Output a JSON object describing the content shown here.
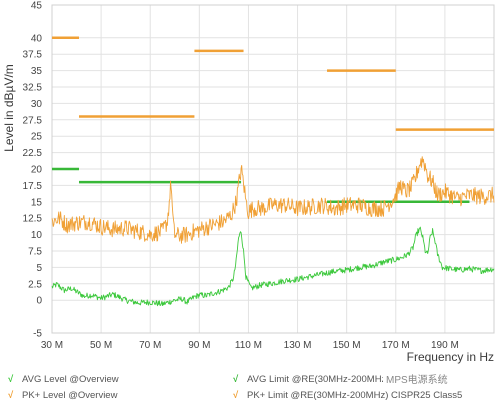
{
  "chart_data": {
    "type": "line",
    "xlabel": "Frequency in Hz",
    "ylabel": "Level in dBµV/m",
    "xlim": [
      30,
      210
    ],
    "ylim": [
      -5,
      45
    ],
    "x_ticks": [
      "30 M",
      "50 M",
      "70 M",
      "90 M",
      "110 M",
      "130 M",
      "150 M",
      "170 M",
      "190 M"
    ],
    "y_ticks": [
      "-5",
      "0",
      "2.5",
      "5",
      "7.5",
      "10",
      "12.5",
      "15",
      "17.5",
      "20",
      "22.5",
      "25",
      "27.5",
      "30",
      "32.5",
      "35",
      "37.5",
      "40",
      "45"
    ],
    "grid": true,
    "legend_position": "bottom",
    "series": [
      {
        "name": "AVG Level @Overview",
        "color": "#3cc83c",
        "x": [
          30,
          32,
          35,
          38,
          40,
          43,
          46,
          50,
          55,
          60,
          65,
          70,
          75,
          80,
          83,
          85,
          88,
          90,
          93,
          95,
          98,
          100,
          102,
          104,
          105,
          106,
          107,
          108,
          109,
          111,
          115,
          120,
          125,
          130,
          135,
          140,
          145,
          150,
          155,
          160,
          165,
          170,
          173,
          175,
          177,
          178,
          179,
          180,
          181,
          182,
          183,
          184,
          185,
          186,
          187,
          189,
          192,
          196,
          200,
          205,
          210
        ],
        "values": [
          2.0,
          2.4,
          1.5,
          1.8,
          1.3,
          0.6,
          0.8,
          0.3,
          0.9,
          0.0,
          -0.4,
          -0.3,
          -0.6,
          0.0,
          0.2,
          -0.3,
          0.5,
          0.8,
          0.7,
          1.0,
          1.3,
          1.6,
          2.0,
          3.5,
          6.0,
          9.5,
          10.5,
          7.5,
          3.5,
          1.8,
          2.3,
          2.6,
          3.0,
          3.2,
          3.6,
          4.0,
          4.4,
          4.6,
          5.0,
          5.2,
          5.8,
          6.2,
          6.6,
          7.0,
          8.0,
          9.5,
          10.5,
          10.8,
          9.5,
          7.5,
          7.0,
          9.5,
          10.5,
          9.0,
          7.0,
          5.0,
          4.8,
          4.6,
          4.8,
          4.5,
          4.8
        ]
      },
      {
        "name": "PK+ Level @Overview",
        "color": "#f0a035",
        "x": [
          30,
          33,
          36,
          40,
          45,
          50,
          55,
          60,
          65,
          70,
          75,
          77,
          78,
          78.5,
          79,
          79.5,
          80,
          82,
          85,
          88,
          92,
          96,
          100,
          103,
          105,
          106,
          107,
          108,
          109,
          110,
          112,
          116,
          120,
          125,
          130,
          135,
          140,
          145,
          150,
          155,
          160,
          165,
          168,
          170,
          172,
          174,
          176,
          178,
          179,
          180,
          181,
          182,
          183,
          185,
          187,
          190,
          195,
          200,
          205,
          210
        ],
        "values": [
          12.0,
          12.5,
          11.5,
          11.8,
          12.0,
          11.2,
          10.8,
          11.0,
          10.5,
          10.0,
          10.5,
          12.0,
          16.0,
          18.0,
          14.0,
          11.0,
          10.0,
          9.8,
          10.0,
          10.5,
          11.0,
          11.5,
          12.0,
          13.0,
          15.0,
          17.5,
          20.0,
          18.0,
          15.0,
          13.5,
          14.0,
          14.0,
          14.5,
          14.5,
          14.0,
          14.2,
          14.5,
          14.0,
          14.5,
          14.5,
          14.0,
          14.0,
          15.0,
          16.0,
          17.5,
          16.5,
          17.0,
          18.5,
          20.0,
          21.0,
          21.5,
          20.5,
          19.0,
          18.0,
          16.0,
          16.5,
          15.5,
          16.0,
          15.8,
          16.0
        ]
      },
      {
        "name": "AVG Limit @RE(30MHz-200MHz) CISPR25 Class5",
        "color": "#38b838",
        "segments": [
          {
            "x": [
              30,
              41
            ],
            "y": [
              20,
              20
            ]
          },
          {
            "x": [
              41,
              107
            ],
            "y": [
              18,
              18
            ]
          },
          {
            "x": [
              142,
              200
            ],
            "y": [
              15,
              15
            ]
          }
        ]
      },
      {
        "name": "PK+ Limit @RE(30MHz-200MHz) CISPR25 Class5",
        "color": "#f0a035",
        "segments": [
          {
            "x": [
              30,
              41
            ],
            "y": [
              40,
              40
            ]
          },
          {
            "x": [
              41,
              88
            ],
            "y": [
              28,
              28
            ]
          },
          {
            "x": [
              88,
              108
            ],
            "y": [
              38,
              38
            ]
          },
          {
            "x": [
              142,
              170
            ],
            "y": [
              35,
              35
            ]
          },
          {
            "x": [
              170,
              210
            ],
            "y": [
              26,
              26
            ]
          }
        ]
      }
    ]
  },
  "legend": {
    "avg_level": "AVG Level @Overview",
    "pk_level": "PK+ Level @Overview",
    "avg_limit": "AVG Limit @RE(30MHz-200MHz) CISPR25 Class5",
    "pk_limit": "PK+ Limit @RE(30MHz-200MHz) CISPR25 Class5",
    "symbol": "√"
  },
  "watermark": "MPS电源系统"
}
